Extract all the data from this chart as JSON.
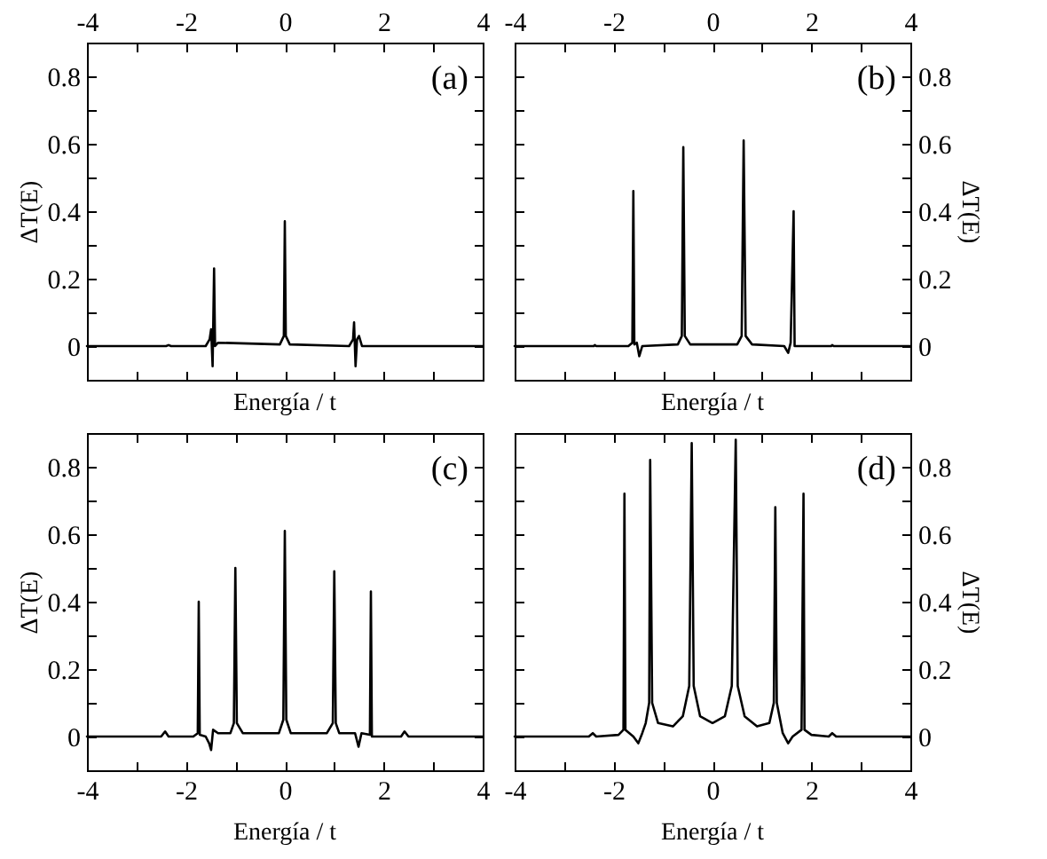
{
  "chart_data": [
    {
      "type": "line",
      "annotations": [
        "(a)"
      ],
      "xlabel": "Energía / t",
      "ylabel": "ΔT(E)",
      "xlim": [
        -4,
        4
      ],
      "xticks": [
        -4,
        {
          "value": -3,
          "label": null
        },
        -2,
        {
          "value": -1,
          "label": null
        },
        0,
        {
          "value": 1,
          "label": null
        },
        2,
        {
          "value": 3,
          "label": null
        },
        4
      ],
      "ylim": [
        -0.1,
        0.9
      ],
      "yticks": [
        0,
        {
          "value": 0.1,
          "label": null
        },
        0.2,
        {
          "value": 0.3,
          "label": null
        },
        0.4,
        {
          "value": 0.5,
          "label": null
        },
        0.6,
        {
          "value": 0.7,
          "label": null
        },
        0.8
      ],
      "line_style": "solid",
      "marker": "none",
      "series": [
        {
          "color": "#000000",
          "x": [
            -4,
            -2.4,
            -2.35,
            -2.3,
            -1.6,
            -1.52,
            -1.49,
            -1.46,
            -1.43,
            -1.41,
            -1.35,
            -0.1,
            -0.02,
            0,
            0.02,
            0.1,
            1.3,
            1.38,
            1.4,
            1.43,
            1.46,
            1.5,
            1.56,
            4
          ],
          "values": [
            0,
            0,
            0.003,
            0,
            0,
            0.02,
            0.05,
            -0.06,
            0.23,
            0,
            0.01,
            0.005,
            0.03,
            0.37,
            0.03,
            0.005,
            0,
            0.02,
            0.07,
            -0.06,
            0.02,
            0.03,
            0,
            0
          ]
        }
      ]
    },
    {
      "type": "line",
      "annotations": [
        "(b)"
      ],
      "xlabel": "Energía / t",
      "y2label": "ΔT(E)",
      "xlim": [
        -4,
        4
      ],
      "xticks": [
        -4,
        {
          "value": -3,
          "label": null
        },
        -2,
        {
          "value": -1,
          "label": null
        },
        0,
        {
          "value": 1,
          "label": null
        },
        2,
        {
          "value": 3,
          "label": null
        },
        4
      ],
      "y2lim": [
        -0.1,
        0.9
      ],
      "y2ticks": [
        0,
        {
          "value": 0.1,
          "label": null
        },
        0.2,
        {
          "value": 0.3,
          "label": null
        },
        0.4,
        {
          "value": 0.5,
          "label": null
        },
        0.6,
        {
          "value": 0.7,
          "label": null
        },
        0.8
      ],
      "line_style": "solid",
      "marker": "none",
      "series": [
        {
          "color": "#000000",
          "axis": "y2",
          "x": [
            -4,
            -2.4,
            -2.38,
            -2.35,
            -1.7,
            -1.62,
            -1.6,
            -1.58,
            -1.53,
            -1.48,
            -1.42,
            -0.7,
            -0.62,
            -0.59,
            -0.56,
            -0.45,
            0.5,
            0.59,
            0.63,
            0.67,
            0.8,
            1.45,
            1.53,
            1.58,
            1.64,
            1.66,
            2.4,
            2.42,
            2.45,
            4
          ],
          "values": [
            0,
            0,
            0.003,
            0,
            0,
            0.01,
            0.46,
            0.005,
            0.01,
            -0.03,
            0,
            0.005,
            0.03,
            0.59,
            0.03,
            0.005,
            0.005,
            0.03,
            0.61,
            0.03,
            0.005,
            0,
            -0.02,
            0.01,
            0.4,
            0,
            0,
            0.003,
            0,
            0
          ]
        }
      ]
    },
    {
      "type": "line",
      "annotations": [
        "(c)"
      ],
      "xlabel": "Energía / t",
      "ylabel": "ΔT(E)",
      "xlim": [
        -4,
        4
      ],
      "xticks": [
        -4,
        {
          "value": -3,
          "label": null
        },
        -2,
        {
          "value": -1,
          "label": null
        },
        0,
        {
          "value": 1,
          "label": null
        },
        2,
        {
          "value": 3,
          "label": null
        },
        4
      ],
      "ylim": [
        -0.1,
        0.9
      ],
      "yticks": [
        0,
        {
          "value": 0.1,
          "label": null
        },
        0.2,
        {
          "value": 0.3,
          "label": null
        },
        0.4,
        {
          "value": 0.5,
          "label": null
        },
        0.6,
        {
          "value": 0.7,
          "label": null
        },
        0.8
      ],
      "line_style": "solid",
      "marker": "none",
      "series": [
        {
          "color": "#000000",
          "x": [
            -4,
            -2.5,
            -2.42,
            -2.35,
            -1.85,
            -1.76,
            -1.74,
            -1.72,
            -1.6,
            -1.53,
            -1.49,
            -1.45,
            -1.35,
            -1.1,
            -1.03,
            -1,
            -0.97,
            -0.85,
            -0.12,
            -0.03,
            0,
            0.03,
            0.12,
            0.85,
            0.97,
            1,
            1.03,
            1.1,
            1.35,
            1.42,
            1.49,
            1.55,
            1.72,
            1.74,
            1.76,
            2.35,
            2.42,
            2.5,
            4
          ],
          "values": [
            0,
            0,
            0.015,
            0,
            0,
            0.01,
            0.4,
            0.005,
            0,
            -0.02,
            -0.04,
            0.02,
            0.01,
            0.01,
            0.04,
            0.5,
            0.04,
            0.01,
            0.01,
            0.05,
            0.61,
            0.05,
            0.01,
            0.01,
            0.04,
            0.49,
            0.04,
            0.01,
            0.01,
            0.01,
            -0.03,
            0.01,
            0.005,
            0.43,
            0,
            0,
            0.015,
            0,
            0
          ]
        }
      ]
    },
    {
      "type": "line",
      "annotations": [
        "(d)"
      ],
      "xlabel": "Energía / t",
      "y2label": "ΔT(E)",
      "xlim": [
        -4,
        4
      ],
      "xticks": [
        -4,
        {
          "value": -3,
          "label": null
        },
        -2,
        {
          "value": -1,
          "label": null
        },
        0,
        {
          "value": 1,
          "label": null
        },
        2,
        {
          "value": 3,
          "label": null
        },
        4
      ],
      "y2lim": [
        -0.1,
        0.9
      ],
      "y2ticks": [
        0,
        {
          "value": 0.1,
          "label": null
        },
        0.2,
        {
          "value": 0.3,
          "label": null
        },
        0.4,
        {
          "value": 0.5,
          "label": null
        },
        0.6,
        {
          "value": 0.7,
          "label": null
        },
        0.8
      ],
      "line_style": "solid",
      "marker": "none",
      "series": [
        {
          "color": "#000000",
          "axis": "y2",
          "x": [
            -4,
            -2.5,
            -2.42,
            -2.35,
            -1.9,
            -1.8,
            -1.78,
            -1.76,
            -1.6,
            -1.5,
            -1.42,
            -1.35,
            -1.28,
            -1.26,
            -1.22,
            -1.1,
            -0.8,
            -0.6,
            -0.47,
            -0.42,
            -0.38,
            -0.25,
            0,
            0.25,
            0.39,
            0.47,
            0.51,
            0.65,
            0.9,
            1.15,
            1.24,
            1.27,
            1.3,
            1.42,
            1.53,
            1.62,
            1.8,
            1.84,
            1.86,
            2,
            2.35,
            2.42,
            2.5,
            4
          ],
          "values": [
            0,
            0,
            0.01,
            0,
            0.005,
            0.02,
            0.72,
            0.02,
            0,
            -0.02,
            0.01,
            0.04,
            0.1,
            0.82,
            0.1,
            0.04,
            0.03,
            0.06,
            0.15,
            0.87,
            0.15,
            0.06,
            0.04,
            0.06,
            0.15,
            0.88,
            0.15,
            0.06,
            0.03,
            0.04,
            0.1,
            0.68,
            0.1,
            0.01,
            -0.02,
            0,
            0.02,
            0.72,
            0.02,
            0.005,
            0,
            0.01,
            0,
            0
          ]
        }
      ]
    }
  ]
}
